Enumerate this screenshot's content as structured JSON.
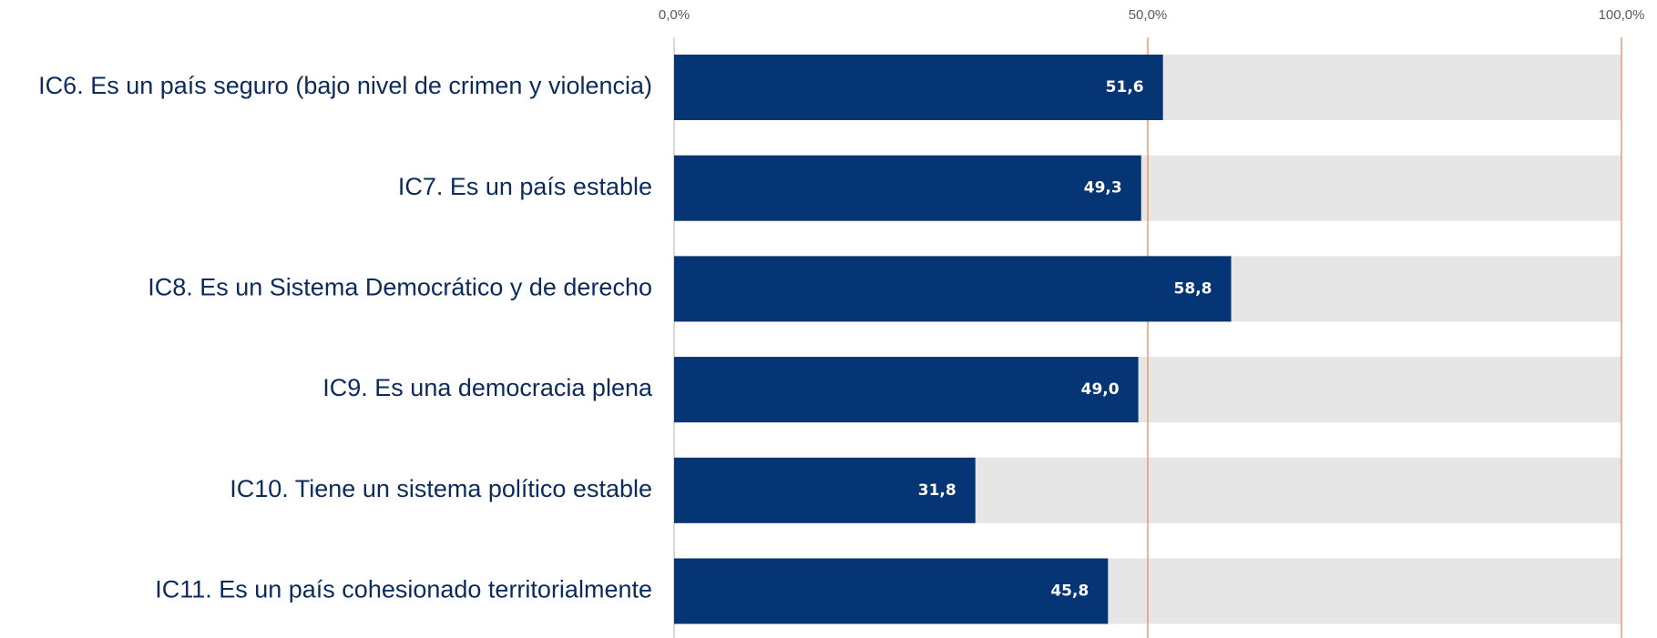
{
  "chart_data": {
    "type": "bar",
    "orientation": "horizontal",
    "categories": [
      "IC6. Es un país seguro (bajo nivel de crimen y violencia)",
      "IC7. Es un país estable",
      "IC8. Es un Sistema Democrático y de derecho",
      "IC9. Es una democracia plena",
      "IC10. Tiene un sistema político estable",
      "IC11. Es un país cohesionado territorialmente"
    ],
    "values": [
      51.6,
      49.3,
      58.8,
      49.0,
      31.8,
      45.8
    ],
    "value_labels": [
      "51,6",
      "49,3",
      "58,8",
      "49,0",
      "31,8",
      "45,8"
    ],
    "color": "#063575",
    "track_color": "#e6e6e6",
    "grid_color": "#e8824a",
    "xlim": [
      0,
      100
    ],
    "xticks": [
      {
        "value": 0,
        "label": "0,0%"
      },
      {
        "value": 50,
        "label": "50,0%"
      },
      {
        "value": 100,
        "label": "100,0%"
      }
    ],
    "grid": true
  }
}
